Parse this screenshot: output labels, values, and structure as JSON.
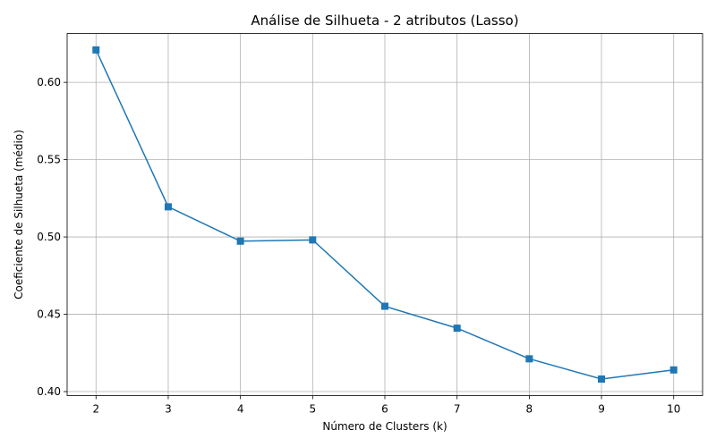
{
  "chart_data": {
    "type": "line",
    "title": "Análise de Silhueta - 2 atributos (Lasso)",
    "xlabel": "Número de Clusters (k)",
    "ylabel": "Coeficiente de Silhueta (médio)",
    "x": [
      2,
      3,
      4,
      5,
      6,
      7,
      8,
      9,
      10
    ],
    "series": [
      {
        "values": [
          0.621,
          0.5195,
          0.4973,
          0.4981,
          0.4552,
          0.441,
          0.4212,
          0.4081,
          0.414
        ],
        "color": "#1f77b4",
        "marker": "square"
      }
    ],
    "xticks": [
      "2",
      "3",
      "4",
      "5",
      "6",
      "7",
      "8",
      "9",
      "10"
    ],
    "yticks": [
      "0.40",
      "0.45",
      "0.50",
      "0.55",
      "0.60"
    ],
    "xlim": [
      1.6,
      10.4
    ],
    "ylim": [
      0.3974,
      0.6316
    ],
    "grid": true
  }
}
